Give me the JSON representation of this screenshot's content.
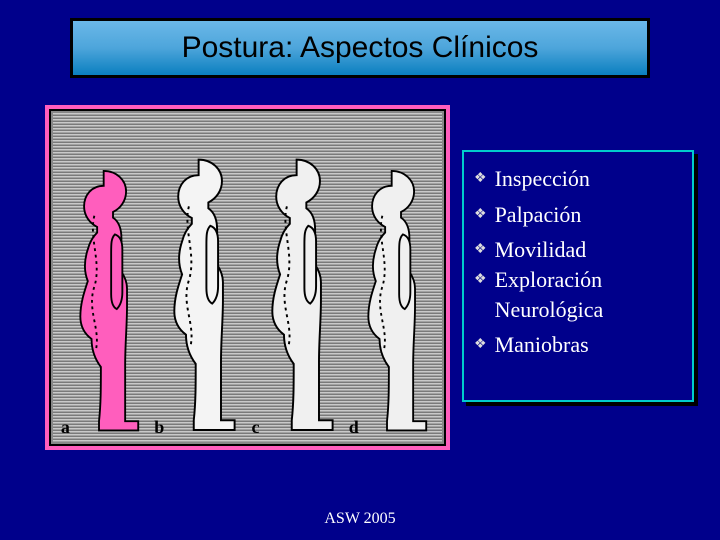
{
  "title": "Postura: Aspectos Clínicos",
  "figure": {
    "border_color": "#ff5ebd",
    "background_stripes": {
      "light": "#c9c9c9",
      "dark": "#7a7a7a"
    },
    "panels": [
      {
        "label": "a",
        "left_pct": 1,
        "width_pct": 24,
        "fill": "#ff5ebd",
        "stroke": "#000000",
        "spine": true
      },
      {
        "label": "b",
        "left_pct": 25,
        "width_pct": 25,
        "fill": "#f4f4f4",
        "stroke": "#000000",
        "spine": true
      },
      {
        "label": "c",
        "left_pct": 50,
        "width_pct": 25,
        "fill": "#f0f0f0",
        "stroke": "#000000",
        "spine": true
      },
      {
        "label": "d",
        "left_pct": 75,
        "width_pct": 24,
        "fill": "#f0f0f0",
        "stroke": "#000000",
        "spine": true
      }
    ]
  },
  "list": {
    "border_color": "#00cccc",
    "text_color": "#ffffff",
    "fontsize": 22,
    "groups": [
      [
        {
          "text": "Inspección"
        }
      ],
      [
        {
          "text": "Palpación"
        }
      ],
      [
        {
          "text": "Movilidad"
        },
        {
          "text": "Exploración Neurológica"
        }
      ],
      [
        {
          "text": "Maniobras"
        }
      ]
    ]
  },
  "footer": "ASW 2005",
  "bullet_glyph": "❖"
}
